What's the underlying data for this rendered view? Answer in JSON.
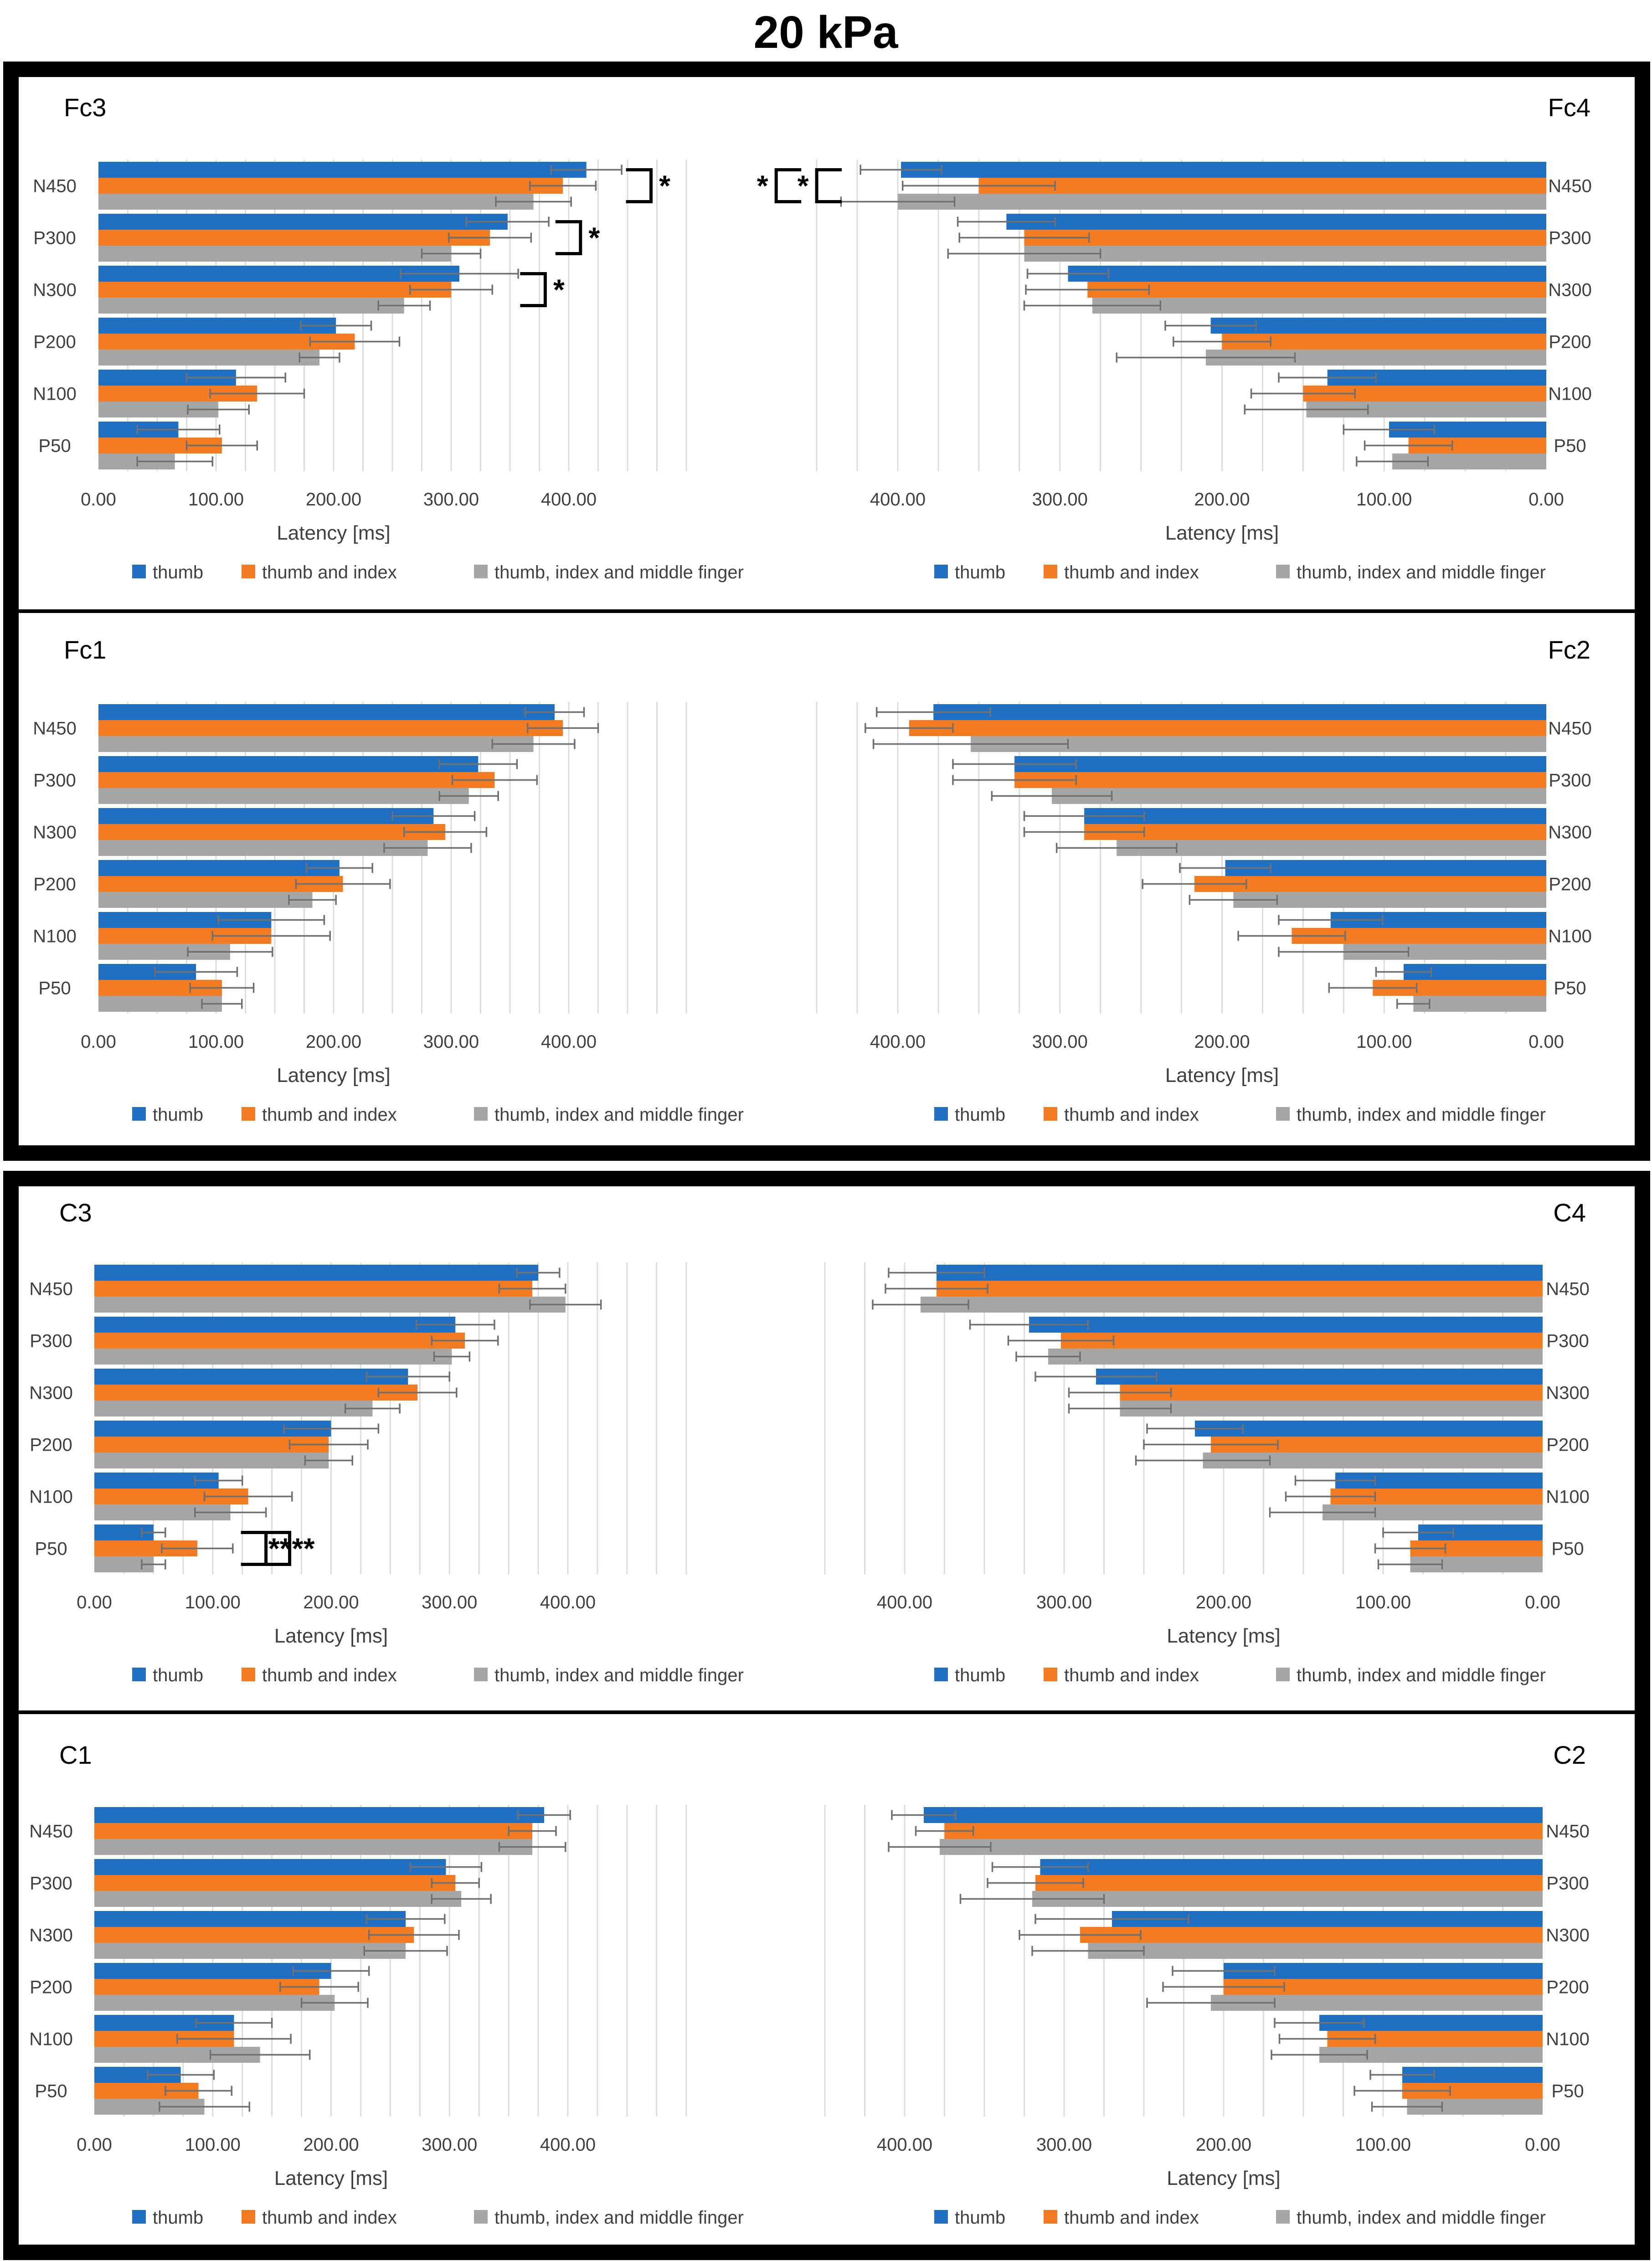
{
  "page_title": "20 kPa",
  "colors": {
    "thumb": "#1f6fc3",
    "thumb_index": "#f47b20",
    "thumb_index_middle": "#a6a6a6",
    "grid": "#dcdcdc",
    "error_bar": "#707070",
    "axis_text": "#404040",
    "frame": "#000000"
  },
  "chart_data": [
    {
      "type": "bar",
      "orientation": "horizontal",
      "x_direction": "left-to-right",
      "title": "Fc3",
      "xlabel": "Latency [ms]",
      "ylabel": "",
      "xlim": [
        0,
        500
      ],
      "xticks": [
        0,
        100,
        200,
        300,
        400
      ],
      "xtick_labels": [
        "0.00",
        "100.00",
        "200.00",
        "300.00",
        "400.00"
      ],
      "grid": true,
      "legend_position": "bottom",
      "categories": [
        "N450",
        "P300",
        "N300",
        "P200",
        "N100",
        "P50"
      ],
      "series": [
        {
          "name": "thumb",
          "values": [
            415,
            348,
            307,
            202,
            117,
            68
          ],
          "errors": [
            30,
            35,
            50,
            30,
            42,
            35
          ]
        },
        {
          "name": "thumb and index",
          "values": [
            395,
            333,
            300,
            218,
            135,
            105
          ],
          "errors": [
            28,
            35,
            35,
            38,
            40,
            30
          ]
        },
        {
          "name": "thumb, index and middle finger",
          "values": [
            370,
            300,
            260,
            188,
            102,
            65
          ],
          "errors": [
            32,
            25,
            22,
            17,
            26,
            32
          ]
        }
      ],
      "significance": [
        {
          "label": "*",
          "category": "N450",
          "bracket_x": 470,
          "side": "right"
        },
        {
          "label": "*",
          "category": "P300",
          "bracket_x": 410,
          "side": "right"
        },
        {
          "label": "*",
          "category": "N300",
          "bracket_x": 380,
          "side": "right"
        }
      ]
    },
    {
      "type": "bar",
      "orientation": "horizontal",
      "x_direction": "right-to-left",
      "title": "Fc4",
      "xlabel": "Latency [ms]",
      "ylabel": "",
      "xlim": [
        0,
        450
      ],
      "xticks": [
        0,
        100,
        200,
        300,
        400
      ],
      "xtick_labels": [
        "0.00",
        "100.00",
        "200.00",
        "300.00",
        "400.00"
      ],
      "grid": true,
      "legend_position": "bottom",
      "categories": [
        "N450",
        "P300",
        "N300",
        "P200",
        "N100",
        "P50"
      ],
      "series": [
        {
          "name": "thumb",
          "values": [
            398,
            333,
            295,
            207,
            135,
            97
          ],
          "errors": [
            25,
            30,
            25,
            28,
            30,
            28
          ]
        },
        {
          "name": "thumb and index",
          "values": [
            350,
            322,
            283,
            200,
            150,
            85
          ],
          "errors": [
            47,
            40,
            38,
            30,
            32,
            27
          ]
        },
        {
          "name": "thumb, index and middle finger",
          "values": [
            400,
            322,
            280,
            210,
            148,
            95
          ],
          "errors": [
            35,
            47,
            42,
            55,
            38,
            22
          ]
        }
      ],
      "significance": [
        {
          "label": "*",
          "category": "N450",
          "bracket_x": 450,
          "side": "left"
        },
        {
          "label": "*",
          "category": "N450",
          "bracket_x": 475,
          "side": "left"
        }
      ]
    },
    {
      "type": "bar",
      "orientation": "horizontal",
      "x_direction": "left-to-right",
      "title": "Fc1",
      "xlabel": "Latency [ms]",
      "ylabel": "",
      "xlim": [
        0,
        500
      ],
      "xticks": [
        0,
        100,
        200,
        300,
        400
      ],
      "xtick_labels": [
        "0.00",
        "100.00",
        "200.00",
        "300.00",
        "400.00"
      ],
      "grid": true,
      "legend_position": "bottom",
      "categories": [
        "N450",
        "P300",
        "N300",
        "P200",
        "N100",
        "P50"
      ],
      "series": [
        {
          "name": "thumb",
          "values": [
            388,
            323,
            285,
            205,
            147,
            83
          ],
          "errors": [
            25,
            33,
            35,
            28,
            45,
            35
          ]
        },
        {
          "name": "thumb and index",
          "values": [
            395,
            337,
            295,
            208,
            147,
            105
          ],
          "errors": [
            30,
            36,
            35,
            40,
            50,
            27
          ]
        },
        {
          "name": "thumb, index and middle finger",
          "values": [
            370,
            315,
            280,
            182,
            112,
            105
          ],
          "errors": [
            35,
            25,
            37,
            20,
            36,
            17
          ]
        }
      ]
    },
    {
      "type": "bar",
      "orientation": "horizontal",
      "x_direction": "right-to-left",
      "title": "Fc2",
      "xlabel": "Latency [ms]",
      "ylabel": "",
      "xlim": [
        0,
        450
      ],
      "xticks": [
        0,
        100,
        200,
        300,
        400
      ],
      "xtick_labels": [
        "0.00",
        "100.00",
        "200.00",
        "300.00",
        "400.00"
      ],
      "grid": true,
      "legend_position": "bottom",
      "categories": [
        "N450",
        "P300",
        "N300",
        "P200",
        "N100",
        "P50"
      ],
      "series": [
        {
          "name": "thumb",
          "values": [
            378,
            328,
            285,
            198,
            133,
            88
          ],
          "errors": [
            35,
            38,
            37,
            28,
            32,
            17
          ]
        },
        {
          "name": "thumb and index",
          "values": [
            393,
            328,
            285,
            217,
            157,
            107
          ],
          "errors": [
            27,
            38,
            37,
            32,
            33,
            27
          ]
        },
        {
          "name": "thumb, index and middle finger",
          "values": [
            355,
            305,
            265,
            193,
            125,
            82
          ],
          "errors": [
            60,
            37,
            37,
            27,
            40,
            10
          ]
        }
      ]
    },
    {
      "type": "bar",
      "orientation": "horizontal",
      "x_direction": "left-to-right",
      "title": "C3",
      "xlabel": "Latency [ms]",
      "ylabel": "",
      "xlim": [
        0,
        500
      ],
      "xticks": [
        0,
        100,
        200,
        300,
        400
      ],
      "xtick_labels": [
        "0.00",
        "100.00",
        "200.00",
        "300.00",
        "400.00"
      ],
      "grid": true,
      "legend_position": "bottom",
      "categories": [
        "N450",
        "P300",
        "N300",
        "P200",
        "N100",
        "P50"
      ],
      "series": [
        {
          "name": "thumb",
          "values": [
            375,
            305,
            265,
            200,
            105,
            50
          ],
          "errors": [
            18,
            33,
            35,
            40,
            20,
            10
          ]
        },
        {
          "name": "thumb and index",
          "values": [
            370,
            313,
            273,
            198,
            130,
            87
          ],
          "errors": [
            28,
            28,
            33,
            33,
            37,
            30
          ]
        },
        {
          "name": "thumb, index and middle finger",
          "values": [
            398,
            302,
            235,
            198,
            115,
            50
          ],
          "errors": [
            30,
            15,
            23,
            20,
            30,
            10
          ]
        }
      ],
      "significance": [
        {
          "label": "**",
          "category": "P50",
          "bracket_x": 165,
          "side": "right"
        },
        {
          "label": "**",
          "category": "P50",
          "bracket_x": 145,
          "side": "right"
        }
      ]
    },
    {
      "type": "bar",
      "orientation": "horizontal",
      "x_direction": "right-to-left",
      "title": "C4",
      "xlabel": "Latency [ms]",
      "ylabel": "",
      "xlim": [
        0,
        450
      ],
      "xticks": [
        0,
        100,
        200,
        300,
        400
      ],
      "xtick_labels": [
        "0.00",
        "100.00",
        "200.00",
        "300.00",
        "400.00"
      ],
      "grid": true,
      "legend_position": "bottom",
      "categories": [
        "N450",
        "P300",
        "N300",
        "P200",
        "N100",
        "P50"
      ],
      "series": [
        {
          "name": "thumb",
          "values": [
            380,
            322,
            280,
            218,
            130,
            78
          ],
          "errors": [
            30,
            37,
            38,
            30,
            25,
            22
          ]
        },
        {
          "name": "thumb and index",
          "values": [
            380,
            302,
            265,
            208,
            133,
            83
          ],
          "errors": [
            32,
            33,
            32,
            42,
            28,
            22
          ]
        },
        {
          "name": "thumb, index and middle finger",
          "values": [
            390,
            310,
            265,
            213,
            138,
            83
          ],
          "errors": [
            30,
            20,
            32,
            42,
            33,
            20
          ]
        }
      ]
    },
    {
      "type": "bar",
      "orientation": "horizontal",
      "x_direction": "left-to-right",
      "title": "C1",
      "xlabel": "Latency [ms]",
      "ylabel": "",
      "xlim": [
        0,
        500
      ],
      "xticks": [
        0,
        100,
        200,
        300,
        400
      ],
      "xtick_labels": [
        "0.00",
        "100.00",
        "200.00",
        "300.00",
        "400.00"
      ],
      "grid": true,
      "legend_position": "bottom",
      "categories": [
        "N450",
        "P300",
        "N300",
        "P200",
        "N100",
        "P50"
      ],
      "series": [
        {
          "name": "thumb",
          "values": [
            380,
            297,
            263,
            200,
            118,
            73
          ],
          "errors": [
            22,
            30,
            33,
            32,
            32,
            28
          ]
        },
        {
          "name": "thumb and index",
          "values": [
            370,
            305,
            270,
            190,
            118,
            88
          ],
          "errors": [
            20,
            20,
            38,
            33,
            48,
            28
          ]
        },
        {
          "name": "thumb, index and middle finger",
          "values": [
            370,
            310,
            263,
            203,
            140,
            93
          ],
          "errors": [
            28,
            25,
            35,
            28,
            42,
            38
          ]
        }
      ]
    },
    {
      "type": "bar",
      "orientation": "horizontal",
      "x_direction": "right-to-left",
      "title": "C2",
      "xlabel": "Latency [ms]",
      "ylabel": "",
      "xlim": [
        0,
        450
      ],
      "xticks": [
        0,
        100,
        200,
        300,
        400
      ],
      "xtick_labels": [
        "0.00",
        "100.00",
        "200.00",
        "300.00",
        "400.00"
      ],
      "grid": true,
      "legend_position": "bottom",
      "categories": [
        "N450",
        "P300",
        "N300",
        "P200",
        "N100",
        "P50"
      ],
      "series": [
        {
          "name": "thumb",
          "values": [
            388,
            315,
            270,
            200,
            140,
            88
          ],
          "errors": [
            20,
            30,
            48,
            32,
            28,
            20
          ]
        },
        {
          "name": "thumb and index",
          "values": [
            375,
            318,
            290,
            200,
            135,
            88
          ],
          "errors": [
            18,
            30,
            38,
            38,
            30,
            30
          ]
        },
        {
          "name": "thumb, index and middle finger",
          "values": [
            378,
            320,
            285,
            208,
            140,
            85
          ],
          "errors": [
            32,
            45,
            35,
            40,
            30,
            22
          ]
        }
      ]
    }
  ]
}
